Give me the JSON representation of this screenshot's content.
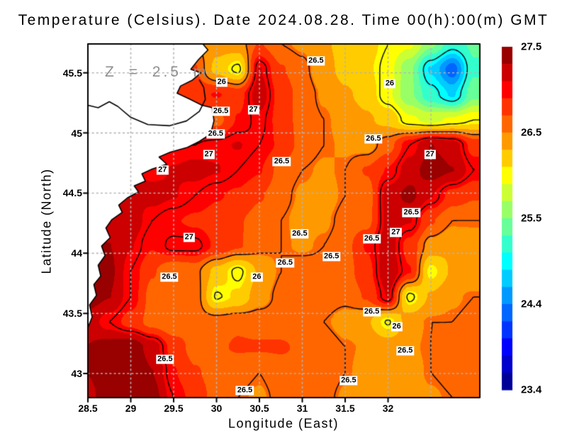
{
  "chart_data": {
    "type": "heatmap",
    "title": "Temperature (Celsius). Date 2024.08.28. Time 00(h):00(m) GMT",
    "annotation": "Z = 2.5 m",
    "xlabel": "Longitude (East)",
    "ylabel": "Latitude (North)",
    "unit": "Celsius",
    "xlim": [
      28.5,
      33.07
    ],
    "ylim": [
      42.8,
      45.74
    ],
    "xticks": [
      "28.5",
      "29",
      "29.5",
      "30",
      "30.5",
      "31",
      "31.5",
      "32"
    ],
    "xtick_values": [
      28.5,
      29,
      29.5,
      30,
      30.5,
      31,
      31.5,
      32
    ],
    "yticks": [
      "43",
      "43.5",
      "44",
      "44.5",
      "45",
      "45.5"
    ],
    "ytick_values": [
      43,
      43.5,
      44,
      44.5,
      45,
      45.5
    ],
    "grid": true,
    "gridline_lons": [
      29,
      29.5,
      30,
      30.5,
      31,
      31.5,
      32,
      32.5
    ],
    "gridline_lats": [
      43,
      43.5,
      44,
      44.5,
      45,
      45.5
    ],
    "x": [
      28.5,
      28.75,
      29.0,
      29.25,
      29.5,
      29.75,
      30.0,
      30.25,
      30.5,
      30.75,
      31.0,
      31.25,
      31.5,
      31.75,
      32.0,
      32.25,
      32.5,
      32.75,
      33.0
    ],
    "y": [
      45.74,
      45.53,
      45.32,
      45.11,
      44.89,
      44.68,
      44.47,
      44.26,
      44.05,
      43.83,
      43.62,
      43.41,
      43.2,
      42.99,
      42.78
    ],
    "values": [
      [
        27.0,
        27.0,
        27.0,
        27.0,
        26.9,
        26.5,
        26.35,
        26.4,
        26.7,
        26.5,
        26.45,
        26.3,
        26.2,
        26.15,
        26.0,
        25.9,
        25.5,
        25.1,
        25.3
      ],
      [
        27.0,
        27.0,
        27.0,
        27.0,
        26.9,
        26.7,
        26.2,
        25.95,
        27.1,
        26.7,
        26.55,
        26.35,
        26.2,
        26.1,
        25.95,
        25.5,
        24.8,
        24.3,
        25.2
      ],
      [
        27.0,
        27.0,
        27.0,
        26.95,
        26.9,
        26.8,
        26.9,
        26.8,
        27.2,
        26.8,
        26.6,
        26.45,
        26.3,
        26.2,
        25.9,
        25.5,
        25.1,
        24.8,
        25.4
      ],
      [
        27.0,
        27.0,
        27.0,
        26.95,
        26.9,
        26.8,
        26.6,
        26.9,
        27.05,
        26.8,
        26.6,
        26.5,
        26.4,
        26.3,
        26.2,
        25.9,
        25.8,
        25.9,
        26.0
      ],
      [
        27.0,
        27.0,
        27.0,
        27.0,
        27.0,
        27.0,
        27.05,
        27.1,
        27.0,
        26.85,
        26.6,
        26.5,
        26.45,
        26.4,
        26.6,
        27.0,
        27.3,
        27.2,
        26.8
      ],
      [
        27.1,
        27.1,
        27.1,
        27.05,
        27.1,
        27.15,
        27.1,
        27.0,
        26.9,
        26.6,
        26.5,
        26.45,
        26.5,
        26.7,
        26.9,
        27.2,
        27.4,
        27.3,
        27.0
      ],
      [
        27.1,
        27.1,
        27.1,
        27.15,
        27.1,
        27.0,
        26.9,
        26.85,
        26.7,
        26.55,
        26.45,
        26.4,
        26.5,
        26.55,
        27.2,
        27.35,
        27.1,
        26.8,
        26.7
      ],
      [
        27.2,
        27.2,
        27.2,
        27.0,
        26.9,
        26.85,
        26.8,
        26.7,
        26.6,
        26.5,
        26.42,
        26.45,
        26.55,
        26.6,
        27.15,
        27.1,
        26.7,
        26.5,
        26.5
      ],
      [
        27.3,
        27.3,
        27.1,
        26.9,
        27.05,
        27.05,
        26.85,
        26.7,
        26.55,
        26.5,
        26.45,
        26.5,
        26.6,
        26.9,
        27.2,
        26.8,
        26.4,
        26.3,
        26.35
      ],
      [
        27.3,
        27.35,
        27.0,
        26.7,
        26.5,
        26.55,
        26.2,
        25.95,
        26.3,
        26.5,
        26.6,
        26.55,
        26.6,
        26.8,
        27.25,
        26.9,
        26.0,
        26.3,
        26.3
      ],
      [
        27.4,
        27.3,
        27.0,
        26.6,
        26.55,
        26.6,
        25.98,
        26.1,
        26.4,
        26.55,
        26.6,
        26.6,
        26.55,
        26.7,
        27.1,
        25.95,
        26.3,
        26.45,
        26.5
      ],
      [
        27.2,
        27.0,
        26.8,
        26.6,
        26.5,
        26.6,
        26.6,
        26.65,
        26.6,
        26.6,
        26.55,
        26.5,
        26.4,
        26.3,
        25.98,
        26.4,
        26.5,
        26.5,
        26.55
      ],
      [
        27.3,
        27.4,
        27.45,
        27.2,
        26.8,
        26.6,
        26.65,
        26.7,
        26.7,
        26.7,
        26.65,
        26.6,
        26.5,
        26.45,
        26.4,
        26.45,
        26.5,
        26.55,
        26.6
      ],
      [
        27.3,
        27.5,
        27.55,
        27.3,
        26.9,
        26.7,
        26.6,
        26.55,
        26.5,
        26.6,
        26.65,
        26.6,
        26.5,
        26.4,
        26.35,
        26.4,
        26.5,
        26.55,
        26.6
      ],
      [
        27.2,
        27.5,
        27.6,
        27.4,
        27.0,
        26.8,
        26.6,
        26.5,
        26.45,
        26.55,
        26.6,
        26.55,
        26.45,
        26.4,
        26.35,
        26.4,
        26.45,
        26.5,
        26.55
      ]
    ],
    "contour_levels": [
      25,
      26,
      26.5,
      27
    ],
    "contour_labels": [
      {
        "text": "26",
        "lon": 30.06,
        "lat": 45.42
      },
      {
        "text": "26.5",
        "lon": 30.05,
        "lat": 45.18
      },
      {
        "text": "26.5",
        "lon": 29.99,
        "lat": 44.99
      },
      {
        "text": "27",
        "lon": 29.91,
        "lat": 44.82
      },
      {
        "text": "27",
        "lon": 29.37,
        "lat": 44.69
      },
      {
        "text": "27",
        "lon": 30.43,
        "lat": 45.19
      },
      {
        "text": "26.5",
        "lon": 31.16,
        "lat": 45.6
      },
      {
        "text": "26",
        "lon": 32.02,
        "lat": 45.41
      },
      {
        "text": "26.5",
        "lon": 31.83,
        "lat": 44.95
      },
      {
        "text": "26.5",
        "lon": 30.76,
        "lat": 44.76
      },
      {
        "text": "27",
        "lon": 32.49,
        "lat": 44.82
      },
      {
        "text": "26.5",
        "lon": 32.27,
        "lat": 44.34
      },
      {
        "text": "27",
        "lon": 32.09,
        "lat": 44.17
      },
      {
        "text": "26.5",
        "lon": 31.81,
        "lat": 44.12
      },
      {
        "text": "26.5",
        "lon": 30.97,
        "lat": 44.16
      },
      {
        "text": "27",
        "lon": 29.68,
        "lat": 44.13
      },
      {
        "text": "26.5",
        "lon": 29.45,
        "lat": 43.8
      },
      {
        "text": "26",
        "lon": 30.47,
        "lat": 43.8
      },
      {
        "text": "26.5",
        "lon": 31.34,
        "lat": 43.97
      },
      {
        "text": "26.5",
        "lon": 30.8,
        "lat": 43.92
      },
      {
        "text": "26.5",
        "lon": 31.81,
        "lat": 43.51
      },
      {
        "text": "26",
        "lon": 32.1,
        "lat": 43.39
      },
      {
        "text": "26.5",
        "lon": 32.2,
        "lat": 43.19
      },
      {
        "text": "26.5",
        "lon": 31.54,
        "lat": 42.94
      },
      {
        "text": "26.5",
        "lon": 30.33,
        "lat": 42.86
      },
      {
        "text": "26.5",
        "lon": 29.4,
        "lat": 43.12
      }
    ],
    "colorbar": {
      "min": 23.4,
      "max": 27.5,
      "segments": 20,
      "colormap": "jet",
      "tick_labels": [
        "27.5",
        "26.5",
        "25.5",
        "24.4",
        "23.4"
      ]
    },
    "land_polygon": [
      [
        28.5,
        45.74
      ],
      [
        29.84,
        45.74
      ],
      [
        29.9,
        45.69
      ],
      [
        29.79,
        45.61
      ],
      [
        29.7,
        45.53
      ],
      [
        29.82,
        45.5
      ],
      [
        29.72,
        45.44
      ],
      [
        29.58,
        45.39
      ],
      [
        29.54,
        45.33
      ],
      [
        29.69,
        45.28
      ],
      [
        29.83,
        45.23
      ],
      [
        29.95,
        45.21
      ],
      [
        29.97,
        45.1
      ],
      [
        29.93,
        44.99
      ],
      [
        29.8,
        44.93
      ],
      [
        29.66,
        44.88
      ],
      [
        29.46,
        44.84
      ],
      [
        29.33,
        44.8
      ],
      [
        29.42,
        44.74
      ],
      [
        29.25,
        44.7
      ],
      [
        29.13,
        44.66
      ],
      [
        29.17,
        44.6
      ],
      [
        29.04,
        44.56
      ],
      [
        29.09,
        44.51
      ],
      [
        28.96,
        44.46
      ],
      [
        28.86,
        44.4
      ],
      [
        28.9,
        44.34
      ],
      [
        28.78,
        44.28
      ],
      [
        28.71,
        44.21
      ],
      [
        28.76,
        44.13
      ],
      [
        28.66,
        44.06
      ],
      [
        28.7,
        43.98
      ],
      [
        28.62,
        43.9
      ],
      [
        28.65,
        43.81
      ],
      [
        28.57,
        43.74
      ],
      [
        28.6,
        43.65
      ],
      [
        28.52,
        43.57
      ],
      [
        28.55,
        43.47
      ],
      [
        28.5,
        43.38
      ]
    ],
    "lagoon_outline": [
      [
        28.5,
        45.23
      ],
      [
        28.62,
        45.21
      ],
      [
        28.75,
        45.26
      ],
      [
        28.85,
        45.22
      ],
      [
        29.0,
        45.13
      ],
      [
        29.2,
        45.07
      ],
      [
        29.45,
        45.06
      ],
      [
        29.65,
        45.1
      ],
      [
        29.8,
        45.18
      ],
      [
        29.87,
        45.28
      ],
      [
        29.85,
        45.38
      ],
      [
        29.8,
        45.44
      ]
    ],
    "colors": {
      "background": "#ffffff",
      "land": "#ffffff",
      "coastline": "#000000",
      "contour": "#000000",
      "gridline": "#b4b4b4",
      "annotation": "#8f8f8f",
      "label_background": "#ffffff"
    }
  }
}
